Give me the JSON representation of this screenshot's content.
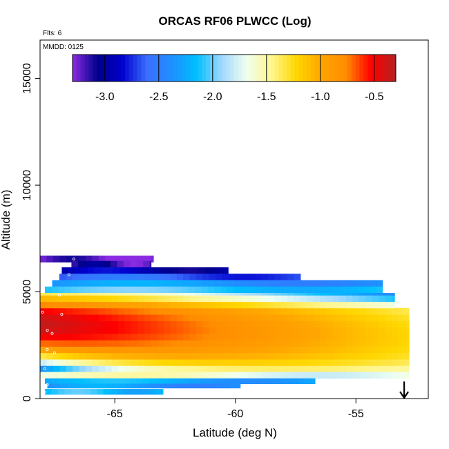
{
  "chart_data": {
    "type": "heatmap",
    "title": "ORCAS RF06 PLWCC (Log)",
    "notes": {
      "flights": "Flts: 6",
      "date": "MMDD: 0125"
    },
    "xlabel": "Latitude (deg N)",
    "ylabel": "Altitude (m)",
    "xlim": [
      -68.1,
      -52.0
    ],
    "ylim": [
      0,
      16800
    ],
    "x_ticks": [
      -65,
      -60,
      -55
    ],
    "x_tick_labels": [
      "-65",
      "-60",
      "-55"
    ],
    "y_ticks": [
      0,
      5000,
      10000,
      15000
    ],
    "y_tick_labels": [
      "0",
      "5000",
      "10000",
      "15000"
    ],
    "colorbar": {
      "range": [
        -3.3,
        -0.3
      ],
      "ticks": [
        -3.0,
        -2.5,
        -2.0,
        -1.5,
        -1.0,
        -0.5
      ],
      "tick_labels": [
        "-3.0",
        "-2.5",
        "-2.0",
        "-1.5",
        "-1.0",
        "-0.5"
      ],
      "colors": [
        "#8a2be2",
        "#00008b",
        "#0000cd",
        "#3a6fff",
        "#1e90ff",
        "#00bfff",
        "#a0d8ff",
        "#f0fff0",
        "#fff68f",
        "#ffd700",
        "#ffa500",
        "#ff8c00",
        "#ff0000",
        "#b22222"
      ]
    },
    "series": [
      {
        "type": "band",
        "x0": -68.1,
        "x1": -63.4,
        "y0": 6400,
        "y1": 6700,
        "value": -3.2
      },
      {
        "type": "band",
        "x0": -66.8,
        "x1": -63.5,
        "y0": 6150,
        "y1": 6450,
        "value": -3.1
      },
      {
        "type": "band",
        "x0": -67.2,
        "x1": -60.3,
        "y0": 5850,
        "y1": 6150,
        "value": -2.9
      },
      {
        "type": "band",
        "x0": -67.3,
        "x1": -57.3,
        "y0": 5550,
        "y1": 5850,
        "value": -2.6
      },
      {
        "type": "band",
        "x0": -67.6,
        "x1": -53.9,
        "y0": 5250,
        "y1": 5550,
        "value": -2.3
      },
      {
        "type": "band",
        "x0": -67.9,
        "x1": -53.9,
        "y0": 4950,
        "y1": 5250,
        "value": -2.05
      },
      {
        "type": "band",
        "x0": -68.1,
        "x1": -53.4,
        "y0": 1250,
        "y1": 4950,
        "value": "gradient"
      },
      {
        "type": "band",
        "x0": -68.1,
        "x1": -52.8,
        "y0": 950,
        "y1": 1250,
        "value": -1.6
      },
      {
        "type": "band",
        "x0": -67.9,
        "x1": -56.7,
        "y0": 700,
        "y1": 950,
        "value": -2.2
      },
      {
        "type": "band",
        "x0": -67.8,
        "x1": -59.8,
        "y0": 500,
        "y1": 700,
        "value": -2.3
      },
      {
        "type": "band",
        "x0": -67.9,
        "x1": -63.0,
        "y0": 200,
        "y1": 450,
        "value": -2.1
      }
    ],
    "marker": {
      "symbol": "arrow-down",
      "x": -53.0,
      "y_top": 800,
      "y_bottom": 0
    }
  }
}
